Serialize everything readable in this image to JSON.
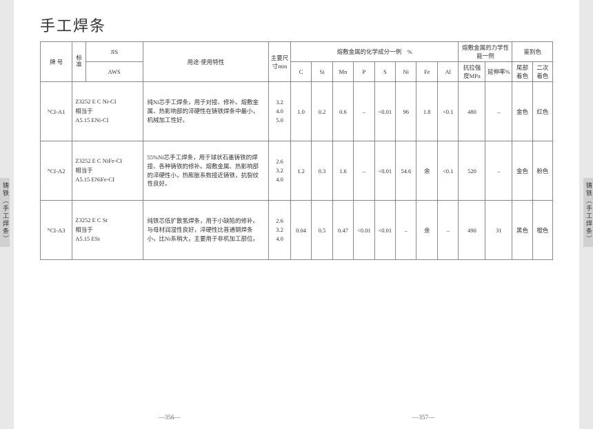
{
  "title": "手工焊条",
  "side_tab": "铸铁（手工焊条）",
  "page_left": "—356—",
  "page_right": "—357—",
  "headers": {
    "grade": "牌 号",
    "std_label": "标准",
    "jis": "JIS",
    "aws": "AWS",
    "usage": "用途·使用特性",
    "size": "主要尺寸mm",
    "chem_group": "熔敷金属的化学成分一例　%",
    "mech_group": "熔敷金属的力学性能一例",
    "color_group": "鉴别色",
    "c": "C",
    "si": "Si",
    "mn": "Mn",
    "p": "P",
    "s": "S",
    "ni": "Ni",
    "fe": "Fe",
    "al": "Al",
    "tensile": "抗拉强度MPa",
    "elong": "延伸率%",
    "tail_color": "尾部着色",
    "sec_color": "二次着色"
  },
  "rows": [
    {
      "grade": "ᴺCI-A1",
      "std": "Z3252 E C Ni-CI\n相当于\nA5.15 ENi-CI",
      "usage": "纯Ni芯手工焊条，用于对接、修补。熔敷金属、热影响部的淬硬性在铸铁焊条中最小，机械加工性好。",
      "size": "3.2\n4.0\n5.0",
      "c": "1.0",
      "si": "0.2",
      "mn": "0.6",
      "p": "–",
      "s": "<0.01",
      "ni": "96",
      "fe": "1.8",
      "al": "<0.1",
      "tensile": "480",
      "elong": "–",
      "tail": "金色",
      "sec": "红色"
    },
    {
      "grade": "ᴺCI-A2",
      "std": "Z3252 E C NiFe-CI\n相当于\nA5.15 ENiFe-CI",
      "usage": "55%Ni芯手工焊条，用于球状石墨铸铁的焊接、各种铸铁的修补。熔敷金属、热影响部的淬硬性小，热膨胀系数接近铸铁，抗裂纹性良好。",
      "size": "2.6\n3.2\n4.0",
      "c": "1.2",
      "si": "0.3",
      "mn": "1.6",
      "p": "–",
      "s": "<0.01",
      "ni": "54.6",
      "fe": "余",
      "al": "<0.1",
      "tensile": "520",
      "elong": "–",
      "tail": "金色",
      "sec": "粉色"
    },
    {
      "grade": "ᴺCI-A3",
      "std": "Z3252 E C St\n相当于\nA5.15 ESt",
      "usage": "纯铁芯低扩散氢焊条，用于小缺陷的修补。与母材润湿性良好，淬硬性比普通钢焊条小，比Ni系稍大，主要用于非机加工部位。",
      "size": "2.6\n3.2\n4.0",
      "c": "0.04",
      "si": "0.5",
      "mn": "0.47",
      "p": "<0.01",
      "s": "<0.01",
      "ni": "–",
      "fe": "余",
      "al": "–",
      "tensile": "490",
      "elong": "31",
      "tail": "黑色",
      "sec": "橙色"
    }
  ]
}
